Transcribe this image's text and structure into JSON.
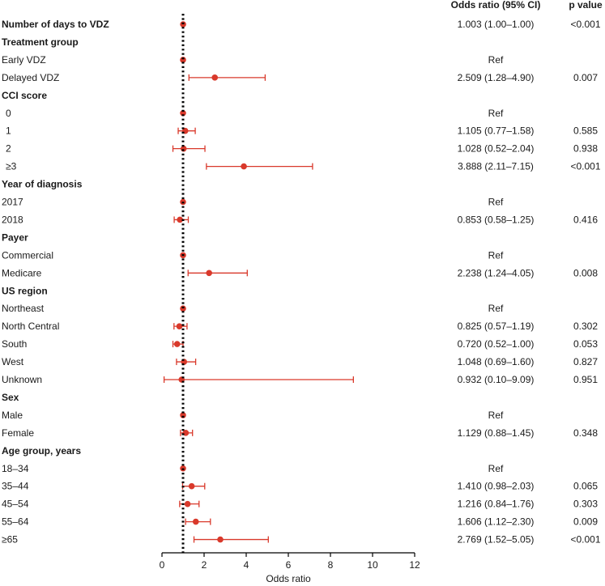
{
  "chart_data": {
    "type": "forest",
    "xlabel": "Odds ratio",
    "xlim": [
      0,
      12
    ],
    "xticks": [
      "0",
      "2",
      "4",
      "6",
      "8",
      "10",
      "12"
    ],
    "reference_line": 1,
    "column_headers": {
      "or": "Odds ratio (95% CI)",
      "p": "p value"
    },
    "colors": {
      "marker": "#d9392b",
      "reference": "#000000",
      "axis": "#000000"
    },
    "rows": [
      {
        "label": "Number of days to VDZ",
        "header": true,
        "or": 1.003,
        "lo": 1.0,
        "hi": 1.0,
        "or_text": "1.003 (1.00–1.00)",
        "p": "<0.001"
      },
      {
        "label": "Treatment group",
        "header": true
      },
      {
        "label": "Early VDZ",
        "or": 1,
        "or_text": "Ref",
        "p": ""
      },
      {
        "label": "Delayed VDZ",
        "or": 2.509,
        "lo": 1.28,
        "hi": 4.9,
        "or_text": "2.509 (1.28–4.90)",
        "p": "0.007"
      },
      {
        "label": "CCI score",
        "header": true
      },
      {
        "label": "0",
        "or": 1,
        "or_text": "Ref",
        "p": ""
      },
      {
        "label": "1",
        "or": 1.105,
        "lo": 0.77,
        "hi": 1.58,
        "or_text": "1.105 (0.77–1.58)",
        "p": "0.585"
      },
      {
        "label": "2",
        "or": 1.028,
        "lo": 0.52,
        "hi": 2.04,
        "or_text": "1.028 (0.52–2.04)",
        "p": "0.938"
      },
      {
        "label": "≥3",
        "or": 3.888,
        "lo": 2.11,
        "hi": 7.15,
        "or_text": "3.888 (2.11–7.15)",
        "p": "<0.001"
      },
      {
        "label": "Year of diagnosis",
        "header": true
      },
      {
        "label": "2017",
        "or": 1,
        "or_text": "Ref",
        "p": ""
      },
      {
        "label": "2018",
        "or": 0.853,
        "lo": 0.58,
        "hi": 1.25,
        "or_text": "0.853 (0.58–1.25)",
        "p": "0.416"
      },
      {
        "label": "Payer",
        "header": true
      },
      {
        "label": "Commercial",
        "or": 1,
        "or_text": "Ref",
        "p": ""
      },
      {
        "label": "Medicare",
        "or": 2.238,
        "lo": 1.24,
        "hi": 4.05,
        "or_text": "2.238 (1.24–4.05)",
        "p": "0.008"
      },
      {
        "label": "US region",
        "header": true
      },
      {
        "label": "Northeast",
        "or": 1,
        "or_text": "Ref",
        "p": ""
      },
      {
        "label": "North Central",
        "or": 0.825,
        "lo": 0.57,
        "hi": 1.19,
        "or_text": "0.825 (0.57–1.19)",
        "p": "0.302"
      },
      {
        "label": "South",
        "or": 0.72,
        "lo": 0.52,
        "hi": 1.0,
        "or_text": "0.720 (0.52–1.00)",
        "p": "0.053"
      },
      {
        "label": "West",
        "or": 1.048,
        "lo": 0.69,
        "hi": 1.6,
        "or_text": "1.048 (0.69–1.60)",
        "p": "0.827"
      },
      {
        "label": "Unknown",
        "or": 0.932,
        "lo": 0.1,
        "hi": 9.09,
        "or_text": "0.932 (0.10–9.09)",
        "p": "0.951"
      },
      {
        "label": "Sex",
        "header": true
      },
      {
        "label": "Male",
        "or": 1,
        "or_text": "Ref",
        "p": ""
      },
      {
        "label": "Female",
        "or": 1.129,
        "lo": 0.88,
        "hi": 1.45,
        "or_text": "1.129 (0.88–1.45)",
        "p": "0.348"
      },
      {
        "label": "Age group, years",
        "header": true
      },
      {
        "label": "18–34",
        "or": 1,
        "or_text": "Ref",
        "p": ""
      },
      {
        "label": "35–44",
        "or": 1.41,
        "lo": 0.98,
        "hi": 2.03,
        "or_text": "1.410 (0.98–2.03)",
        "p": "0.065"
      },
      {
        "label": "45–54",
        "or": 1.216,
        "lo": 0.84,
        "hi": 1.76,
        "or_text": "1.216 (0.84–1.76)",
        "p": "0.303"
      },
      {
        "label": "55–64",
        "or": 1.606,
        "lo": 1.12,
        "hi": 2.3,
        "or_text": "1.606 (1.12–2.30)",
        "p": "0.009"
      },
      {
        "label": "≥65",
        "or": 2.769,
        "lo": 1.52,
        "hi": 5.05,
        "or_text": "2.769 (1.52–5.05)",
        "p": "<0.001"
      }
    ]
  }
}
